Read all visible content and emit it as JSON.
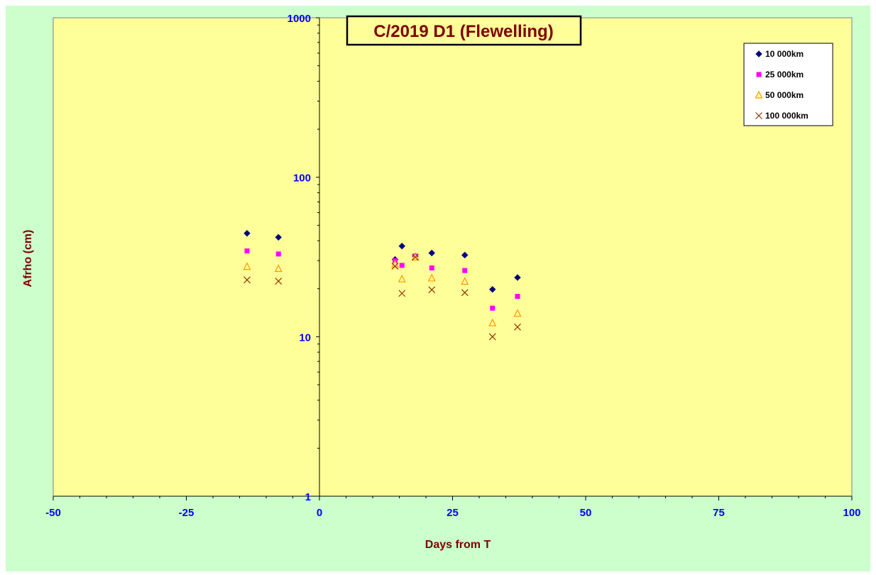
{
  "chart_data": {
    "type": "scatter",
    "title": "C/2019 D1 (Flewelling)",
    "xlabel": "Days from T",
    "ylabel": "Afrho (cm)",
    "xlim": [
      -50,
      100
    ],
    "ylim": [
      1,
      1000
    ],
    "yscale": "log",
    "x_ticks": [
      -50,
      -25,
      0,
      25,
      50,
      75,
      100
    ],
    "x_tick_labels": [
      "-50",
      "-25",
      "0",
      "25",
      "50",
      "75",
      "100"
    ],
    "y_ticks": [
      1,
      10,
      100,
      1000
    ],
    "y_tick_labels": [
      "1",
      "10",
      "100",
      "1000"
    ],
    "grid": false,
    "legend_position": "top-right",
    "colors": {
      "outer_background": "#ccffcc",
      "plot_background": "#ffff99",
      "axis_labels": "#0000ff",
      "titles": "#800000"
    },
    "series": [
      {
        "name": "10 000km",
        "marker": "diamond",
        "color": "#000080",
        "points": [
          {
            "x": -13.6,
            "y": 44.5
          },
          {
            "x": -7.7,
            "y": 42
          },
          {
            "x": 14.2,
            "y": 30.5
          },
          {
            "x": 15.5,
            "y": 37
          },
          {
            "x": 18,
            "y": 32
          },
          {
            "x": 21.1,
            "y": 33.5
          },
          {
            "x": 27.3,
            "y": 32.5
          },
          {
            "x": 32.5,
            "y": 19.8
          },
          {
            "x": 37.2,
            "y": 23.5
          }
        ]
      },
      {
        "name": "25 000km",
        "marker": "square",
        "color": "#ff00ff",
        "points": [
          {
            "x": -13.6,
            "y": 34.5
          },
          {
            "x": -7.7,
            "y": 33
          },
          {
            "x": 14.2,
            "y": 30
          },
          {
            "x": 15.5,
            "y": 28
          },
          {
            "x": 18,
            "y": 32
          },
          {
            "x": 21.1,
            "y": 27
          },
          {
            "x": 27.3,
            "y": 26
          },
          {
            "x": 32.5,
            "y": 15.1
          },
          {
            "x": 37.2,
            "y": 17.9
          }
        ]
      },
      {
        "name": "50 000km",
        "marker": "triangle",
        "color": "#ff9900",
        "points": [
          {
            "x": -13.6,
            "y": 27.5
          },
          {
            "x": -7.7,
            "y": 26.7
          },
          {
            "x": 14.2,
            "y": 28.5
          },
          {
            "x": 15.5,
            "y": 23
          },
          {
            "x": 18,
            "y": 31.5
          },
          {
            "x": 21.1,
            "y": 23.3
          },
          {
            "x": 27.3,
            "y": 22.2
          },
          {
            "x": 32.5,
            "y": 12.2
          },
          {
            "x": 37.2,
            "y": 14
          }
        ]
      },
      {
        "name": "100 000km",
        "marker": "x",
        "color": "#993300",
        "points": [
          {
            "x": -13.6,
            "y": 22.7
          },
          {
            "x": -7.7,
            "y": 22.3
          },
          {
            "x": 14.2,
            "y": 27.7
          },
          {
            "x": 15.5,
            "y": 18.7
          },
          {
            "x": 18,
            "y": 31.5
          },
          {
            "x": 21.1,
            "y": 19.7
          },
          {
            "x": 27.3,
            "y": 18.9
          },
          {
            "x": 32.5,
            "y": 10
          },
          {
            "x": 37.2,
            "y": 11.5
          }
        ]
      }
    ]
  }
}
